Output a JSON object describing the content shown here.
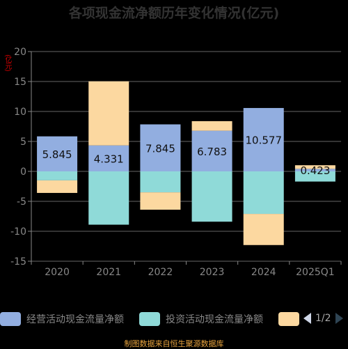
{
  "title": "各项现金流净额历年变化情况(亿元)",
  "unit_label": "(亿元)",
  "colors": {
    "operating": "#92aee0",
    "investing": "#8fdad8",
    "financing": "#fcd8a0",
    "axis": "#888888"
  },
  "legend": {
    "items": [
      "经营活动现金流量净额",
      "投资活动现金流量净额",
      ""
    ],
    "page": "1/2"
  },
  "footer": "制图数据来自恒生聚源数据库",
  "chart_data": {
    "type": "bar",
    "stacked": true,
    "categories": [
      "2020",
      "2021",
      "2022",
      "2023",
      "2024",
      "2025Q1"
    ],
    "series": [
      {
        "name": "经营活动现金流量净额",
        "values": [
          5.845,
          4.331,
          7.845,
          6.783,
          10.577,
          0.423
        ]
      },
      {
        "name": "投资活动现金流量净额",
        "values": [
          -1.5,
          -8.9,
          -3.5,
          -8.4,
          -7.1,
          -1.7
        ]
      },
      {
        "name": "",
        "values": [
          -2.1,
          10.7,
          -2.9,
          1.6,
          -5.2,
          0.6
        ]
      }
    ],
    "data_labels": [
      "5.845",
      "4.331",
      "7.845",
      "6.783",
      "10.577",
      "0.423"
    ],
    "yticks": [
      "20",
      "15",
      "10",
      "5",
      "0",
      "-5",
      "-10",
      "-15"
    ],
    "ylim": [
      -15,
      20
    ],
    "grid": true
  }
}
